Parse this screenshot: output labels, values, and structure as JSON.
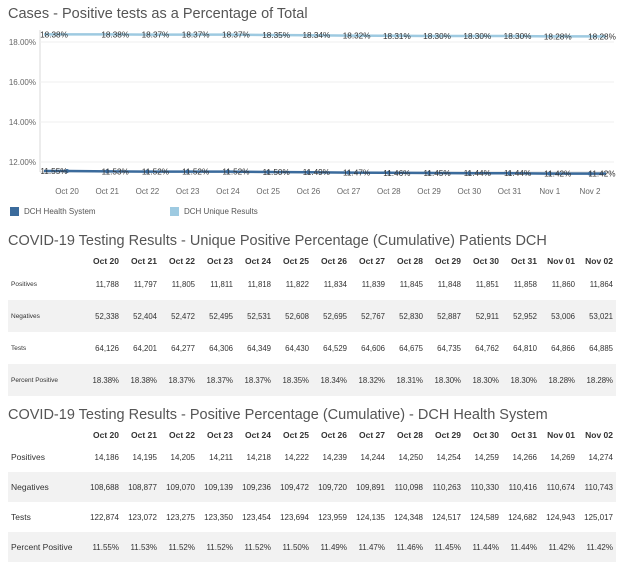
{
  "chart_data": {
    "type": "line",
    "title": "Cases - Positive tests as a Percentage of Total",
    "categories": [
      "Oct 20",
      "Oct 21",
      "Oct 22",
      "Oct 23",
      "Oct 24",
      "Oct 25",
      "Oct 26",
      "Oct 27",
      "Oct 28",
      "Oct 29",
      "Oct 30",
      "Oct 31",
      "Nov 1",
      "Nov 2"
    ],
    "y_ticks": [
      "18.00%",
      "16.00%",
      "14.00%",
      "12.00%"
    ],
    "ylim": [
      11.5,
      18.5
    ],
    "grid": true,
    "legend_position": "bottom-left",
    "series": [
      {
        "name": "DCH Health System",
        "color": "#3b6b9c",
        "values": [
          11.55,
          11.53,
          11.52,
          11.52,
          11.52,
          11.5,
          11.49,
          11.47,
          11.46,
          11.45,
          11.44,
          11.44,
          11.42,
          11.42
        ],
        "labels": [
          "11.55%",
          "11.53%",
          "11.52%",
          "11.52%",
          "11.52%",
          "11.50%",
          "11.49%",
          "11.47%",
          "11.46%",
          "11.45%",
          "11.44%",
          "11.44%",
          "11.42%",
          "11.42%"
        ]
      },
      {
        "name": "DCH Unique Results",
        "color": "#9ecae1",
        "values": [
          18.38,
          18.38,
          18.37,
          18.37,
          18.37,
          18.35,
          18.34,
          18.32,
          18.31,
          18.3,
          18.3,
          18.3,
          18.28,
          18.28
        ],
        "labels": [
          "18.38%",
          "18.38%",
          "18.37%",
          "18.37%",
          "18.37%",
          "18.35%",
          "18.34%",
          "18.32%",
          "18.31%",
          "18.30%",
          "18.30%",
          "18.30%",
          "18.28%",
          "18.28%"
        ]
      }
    ]
  },
  "table1": {
    "title": "COVID-19 Testing Results - Unique Positive Percentage (Cumulative) Patients DCH",
    "columns": [
      "Oct 20",
      "Oct 21",
      "Oct 22",
      "Oct 23",
      "Oct 24",
      "Oct 25",
      "Oct 26",
      "Oct 27",
      "Oct 28",
      "Oct 29",
      "Oct 30",
      "Oct 31",
      "Nov 01",
      "Nov 02"
    ],
    "rows": [
      {
        "label": "Positives",
        "values": [
          "11,788",
          "11,797",
          "11,805",
          "11,811",
          "11,818",
          "11,822",
          "11,834",
          "11,839",
          "11,845",
          "11,848",
          "11,851",
          "11,858",
          "11,860",
          "11,864"
        ]
      },
      {
        "label": "Negatives",
        "values": [
          "52,338",
          "52,404",
          "52,472",
          "52,495",
          "52,531",
          "52,608",
          "52,695",
          "52,767",
          "52,830",
          "52,887",
          "52,911",
          "52,952",
          "53,006",
          "53,021"
        ]
      },
      {
        "label": "Tests",
        "values": [
          "64,126",
          "64,201",
          "64,277",
          "64,306",
          "64,349",
          "64,430",
          "64,529",
          "64,606",
          "64,675",
          "64,735",
          "64,762",
          "64,810",
          "64,866",
          "64,885"
        ]
      },
      {
        "label": "Percent Positive",
        "values": [
          "18.38%",
          "18.38%",
          "18.37%",
          "18.37%",
          "18.37%",
          "18.35%",
          "18.34%",
          "18.32%",
          "18.31%",
          "18.30%",
          "18.30%",
          "18.30%",
          "18.28%",
          "18.28%"
        ]
      }
    ]
  },
  "table2": {
    "title": "COVID-19 Testing Results - Positive Percentage (Cumulative) - DCH Health System",
    "columns": [
      "Oct 20",
      "Oct 21",
      "Oct 22",
      "Oct 23",
      "Oct 24",
      "Oct 25",
      "Oct 26",
      "Oct 27",
      "Oct 28",
      "Oct 29",
      "Oct 30",
      "Oct 31",
      "Nov 01",
      "Nov 02"
    ],
    "rows": [
      {
        "label": "Positives",
        "values": [
          "14,186",
          "14,195",
          "14,205",
          "14,211",
          "14,218",
          "14,222",
          "14,239",
          "14,244",
          "14,250",
          "14,254",
          "14,259",
          "14,266",
          "14,269",
          "14,274"
        ]
      },
      {
        "label": "Negatives",
        "values": [
          "108,688",
          "108,877",
          "109,070",
          "109,139",
          "109,236",
          "109,472",
          "109,720",
          "109,891",
          "110,098",
          "110,263",
          "110,330",
          "110,416",
          "110,674",
          "110,743"
        ]
      },
      {
        "label": "Tests",
        "values": [
          "122,874",
          "123,072",
          "123,275",
          "123,350",
          "123,454",
          "123,694",
          "123,959",
          "124,135",
          "124,348",
          "124,517",
          "124,589",
          "124,682",
          "124,943",
          "125,017"
        ]
      },
      {
        "label": "Percent Positive",
        "values": [
          "11.55%",
          "11.53%",
          "11.52%",
          "11.52%",
          "11.52%",
          "11.50%",
          "11.49%",
          "11.47%",
          "11.46%",
          "11.45%",
          "11.44%",
          "11.44%",
          "11.42%",
          "11.42%"
        ]
      }
    ]
  }
}
